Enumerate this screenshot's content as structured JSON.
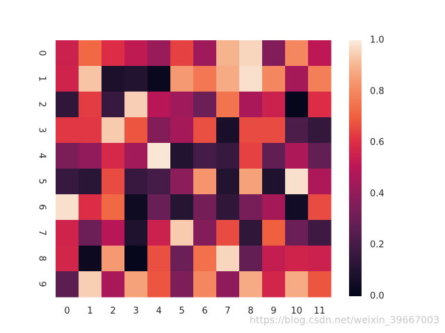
{
  "chart_data": {
    "type": "heatmap",
    "title": "",
    "xlabel": "",
    "ylabel": "",
    "x_categories": [
      "0",
      "1",
      "2",
      "3",
      "4",
      "5",
      "6",
      "7",
      "8",
      "9",
      "10",
      "11"
    ],
    "y_categories": [
      "0",
      "1",
      "2",
      "3",
      "4",
      "5",
      "6",
      "7",
      "8",
      "9"
    ],
    "colorbar": {
      "min": 0.0,
      "max": 1.0,
      "ticks": [
        "0.0",
        "0.2",
        "0.4",
        "0.6",
        "0.8",
        "1.0"
      ],
      "colormap": "rocket"
    },
    "values": [
      [
        0.55,
        0.72,
        0.6,
        0.52,
        0.42,
        0.64,
        0.43,
        0.9,
        0.96,
        0.36,
        0.8,
        0.51
      ],
      [
        0.56,
        0.93,
        0.08,
        0.1,
        0.02,
        0.84,
        0.76,
        0.88,
        0.98,
        0.8,
        0.45,
        0.78
      ],
      [
        0.14,
        0.63,
        0.16,
        0.95,
        0.5,
        0.43,
        0.3,
        0.75,
        0.46,
        0.55,
        0.01,
        0.6
      ],
      [
        0.62,
        0.62,
        0.94,
        0.68,
        0.36,
        0.45,
        0.67,
        0.07,
        0.66,
        0.66,
        0.22,
        0.15
      ],
      [
        0.34,
        0.4,
        0.58,
        0.44,
        0.99,
        0.1,
        0.2,
        0.16,
        0.64,
        0.27,
        0.47,
        0.28
      ],
      [
        0.16,
        0.12,
        0.66,
        0.16,
        0.2,
        0.38,
        0.83,
        0.1,
        0.86,
        0.09,
        0.98,
        0.47
      ],
      [
        0.98,
        0.6,
        0.72,
        0.04,
        0.29,
        0.11,
        0.32,
        0.14,
        0.33,
        0.45,
        0.05,
        0.66
      ],
      [
        0.56,
        0.3,
        0.5,
        0.09,
        0.55,
        0.94,
        0.36,
        0.66,
        0.14,
        0.7,
        0.3,
        0.18
      ],
      [
        0.57,
        0.03,
        0.84,
        0.01,
        0.67,
        0.3,
        0.74,
        0.96,
        0.28,
        0.53,
        0.56,
        0.55
      ],
      [
        0.26,
        0.95,
        0.46,
        0.86,
        0.68,
        0.35,
        0.8,
        0.39,
        0.88,
        0.57,
        0.88,
        0.68
      ]
    ]
  },
  "watermark": "https://blog.csdn.net/weixin_39667003"
}
